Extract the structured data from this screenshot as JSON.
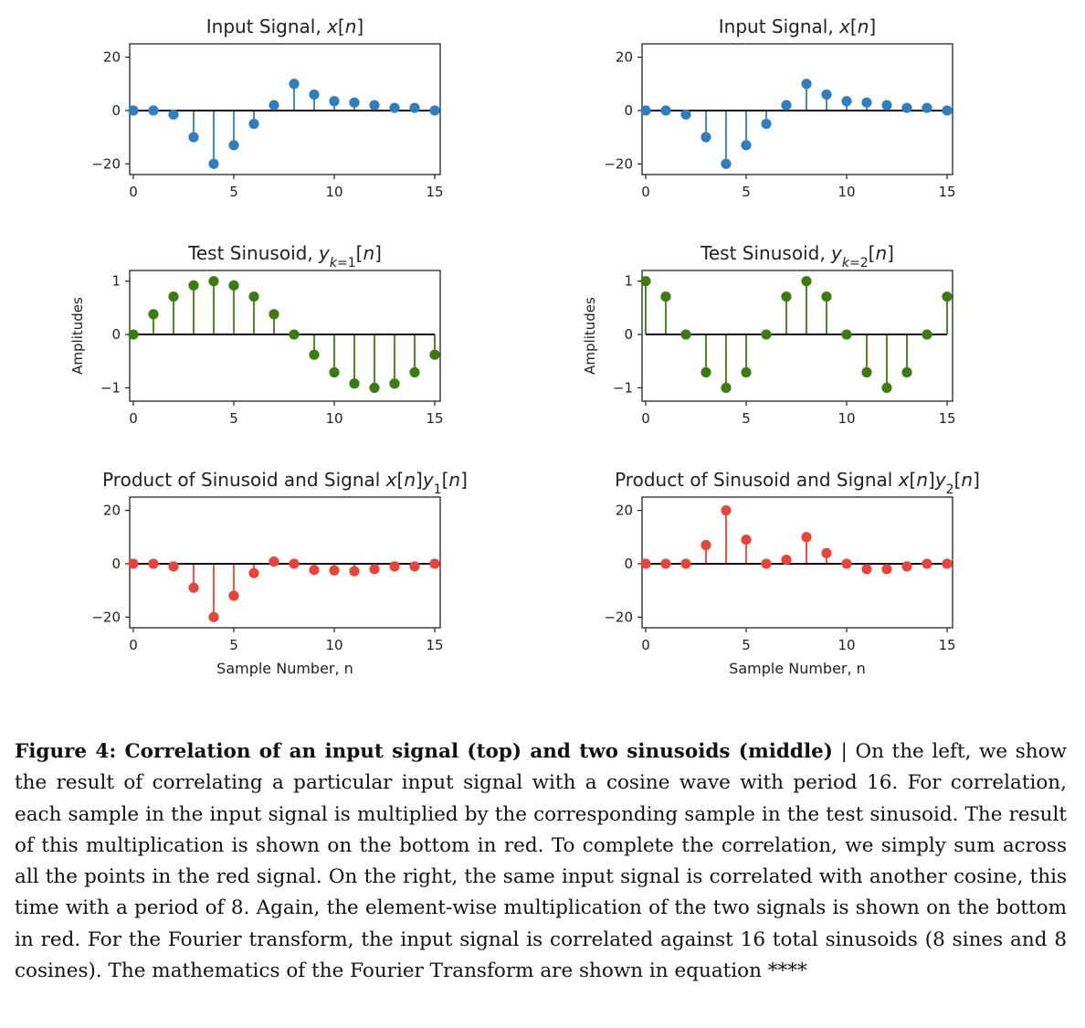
{
  "chart_data": [
    {
      "type": "stem",
      "title": "Input Signal, x[n]",
      "title_parts": [
        {
          "t": "Input Signal, "
        },
        {
          "t": "x",
          "i": true
        },
        {
          "t": "["
        },
        {
          "t": "n",
          "i": true
        },
        {
          "t": "]"
        }
      ],
      "xlabel": "",
      "ylabel": "",
      "x": [
        0,
        1,
        2,
        3,
        4,
        5,
        6,
        7,
        8,
        9,
        10,
        11,
        12,
        13,
        14,
        15
      ],
      "values": [
        0,
        0,
        -1.5,
        -10,
        -20,
        -13,
        -5,
        2,
        10,
        6,
        3.5,
        3,
        2,
        1,
        1,
        0
      ],
      "xlim": [
        0,
        15
      ],
      "ylim": [
        -24,
        25
      ],
      "xticks": [
        0,
        5,
        10,
        15
      ],
      "yticks": [
        -20,
        0,
        20
      ],
      "ytick_labels": [
        "−20",
        "0",
        "20"
      ],
      "color": "#2e7fc1"
    },
    {
      "type": "stem",
      "title": "Input Signal, x[n]",
      "title_parts": [
        {
          "t": "Input Signal, "
        },
        {
          "t": "x",
          "i": true
        },
        {
          "t": "["
        },
        {
          "t": "n",
          "i": true
        },
        {
          "t": "]"
        }
      ],
      "xlabel": "",
      "ylabel": "",
      "x": [
        0,
        1,
        2,
        3,
        4,
        5,
        6,
        7,
        8,
        9,
        10,
        11,
        12,
        13,
        14,
        15
      ],
      "values": [
        0,
        0,
        -1.5,
        -10,
        -20,
        -13,
        -5,
        2,
        10,
        6,
        3.5,
        3,
        2,
        1,
        1,
        0
      ],
      "xlim": [
        0,
        15
      ],
      "ylim": [
        -24,
        25
      ],
      "xticks": [
        0,
        5,
        10,
        15
      ],
      "yticks": [
        -20,
        0,
        20
      ],
      "ytick_labels": [
        "−20",
        "0",
        "20"
      ],
      "color": "#2e7fc1"
    },
    {
      "type": "stem",
      "title": "Test Sinusoid, y_{k=1}[n]",
      "title_parts": [
        {
          "t": "Test Sinusoid, "
        },
        {
          "t": "y",
          "i": true
        },
        {
          "t": "k",
          "i": true,
          "sub": true
        },
        {
          "t": "=1",
          "sub": true
        },
        {
          "t": "["
        },
        {
          "t": "n",
          "i": true
        },
        {
          "t": "]"
        }
      ],
      "xlabel": "",
      "ylabel": "Amplitudes",
      "x": [
        0,
        1,
        2,
        3,
        4,
        5,
        6,
        7,
        8,
        9,
        10,
        11,
        12,
        13,
        14,
        15
      ],
      "values": [
        0,
        0.38,
        0.71,
        0.92,
        1,
        0.92,
        0.71,
        0.38,
        0,
        -0.38,
        -0.71,
        -0.92,
        -1,
        -0.92,
        -0.71,
        -0.38
      ],
      "xlim": [
        0,
        15
      ],
      "ylim": [
        -1.25,
        1.2
      ],
      "xticks": [
        0,
        5,
        10,
        15
      ],
      "yticks": [
        -1,
        0,
        1
      ],
      "ytick_labels": [
        "−1",
        "0",
        "1"
      ],
      "color": "#3a7d0e"
    },
    {
      "type": "stem",
      "title": "Test Sinusoid, y_{k=2}[n]",
      "title_parts": [
        {
          "t": "Test Sinusoid, "
        },
        {
          "t": "y",
          "i": true
        },
        {
          "t": "k",
          "i": true,
          "sub": true
        },
        {
          "t": "=2",
          "sub": true
        },
        {
          "t": "["
        },
        {
          "t": "n",
          "i": true
        },
        {
          "t": "]"
        }
      ],
      "xlabel": "",
      "ylabel": "Amplitudes",
      "x": [
        0,
        1,
        2,
        3,
        4,
        5,
        6,
        7,
        8,
        9,
        10,
        11,
        12,
        13,
        14,
        15
      ],
      "values": [
        1,
        0.71,
        0,
        -0.71,
        -1,
        -0.71,
        0,
        0.71,
        1,
        0.71,
        0,
        -0.71,
        -1,
        -0.71,
        0,
        0.71
      ],
      "xlim": [
        0,
        15
      ],
      "ylim": [
        -1.25,
        1.2
      ],
      "xticks": [
        0,
        5,
        10,
        15
      ],
      "yticks": [
        -1,
        0,
        1
      ],
      "ytick_labels": [
        "−1",
        "0",
        "1"
      ],
      "color": "#3a7d0e"
    },
    {
      "type": "stem",
      "title": "Product of Sinusoid and Signal x[n]y_1[n]",
      "title_parts": [
        {
          "t": "Product of Sinusoid and Signal "
        },
        {
          "t": "x",
          "i": true
        },
        {
          "t": "["
        },
        {
          "t": "n",
          "i": true
        },
        {
          "t": "]"
        },
        {
          "t": "y",
          "i": true
        },
        {
          "t": "1",
          "sub": true
        },
        {
          "t": "["
        },
        {
          "t": "n",
          "i": true
        },
        {
          "t": "]"
        }
      ],
      "xlabel": "Sample Number, n",
      "ylabel": "",
      "x": [
        0,
        1,
        2,
        3,
        4,
        5,
        6,
        7,
        8,
        9,
        10,
        11,
        12,
        13,
        14,
        15
      ],
      "values": [
        0,
        0,
        -1,
        -9,
        -20,
        -12,
        -3.5,
        0.8,
        0,
        -2.3,
        -2.5,
        -2.8,
        -2,
        -1,
        -1,
        0
      ],
      "xlim": [
        0,
        15
      ],
      "ylim": [
        -24,
        25
      ],
      "xticks": [
        0,
        5,
        10,
        15
      ],
      "yticks": [
        -20,
        0,
        20
      ],
      "ytick_labels": [
        "−20",
        "0",
        "20"
      ],
      "color": "#e8443a"
    },
    {
      "type": "stem",
      "title": "Product of Sinusoid and Signal x[n]y_2[n]",
      "title_parts": [
        {
          "t": "Product of Sinusoid and Signal "
        },
        {
          "t": "x",
          "i": true
        },
        {
          "t": "["
        },
        {
          "t": "n",
          "i": true
        },
        {
          "t": "]"
        },
        {
          "t": "y",
          "i": true
        },
        {
          "t": "2",
          "sub": true
        },
        {
          "t": "["
        },
        {
          "t": "n",
          "i": true
        },
        {
          "t": "]"
        }
      ],
      "xlabel": "Sample Number, n",
      "ylabel": "",
      "x": [
        0,
        1,
        2,
        3,
        4,
        5,
        6,
        7,
        8,
        9,
        10,
        11,
        12,
        13,
        14,
        15
      ],
      "values": [
        0,
        0,
        0,
        7,
        20,
        9,
        0,
        1.5,
        10,
        4,
        0,
        -2,
        -2,
        -1,
        0,
        0
      ],
      "xlim": [
        0,
        15
      ],
      "ylim": [
        -24,
        25
      ],
      "xticks": [
        0,
        5,
        10,
        15
      ],
      "yticks": [
        -20,
        0,
        20
      ],
      "ytick_labels": [
        "−20",
        "0",
        "20"
      ],
      "color": "#e8443a"
    }
  ],
  "caption": {
    "bold": "Figure 4: Correlation of an input signal (top) and two sinusoids (middle)",
    "text": " | On the left, we show the result of correlating a particular input signal with a cosine wave with period 16. For correlation, each sample in the input signal is multiplied by the corresponding sample in the test sinusoid. The result of this multiplication is shown on the bottom in red. To complete the correlation, we simply sum across all the points in the red signal. On the right, the same input signal is correlated with another cosine, this time with a period of 8. Again, the element-wise multiplication of the two signals is shown on the bottom in red. For the Fourier transform, the input signal is correlated against 16 total sinusoids (8 sines and 8 cosines). The mathematics of the Fourier Transform are shown in equation ****"
  }
}
